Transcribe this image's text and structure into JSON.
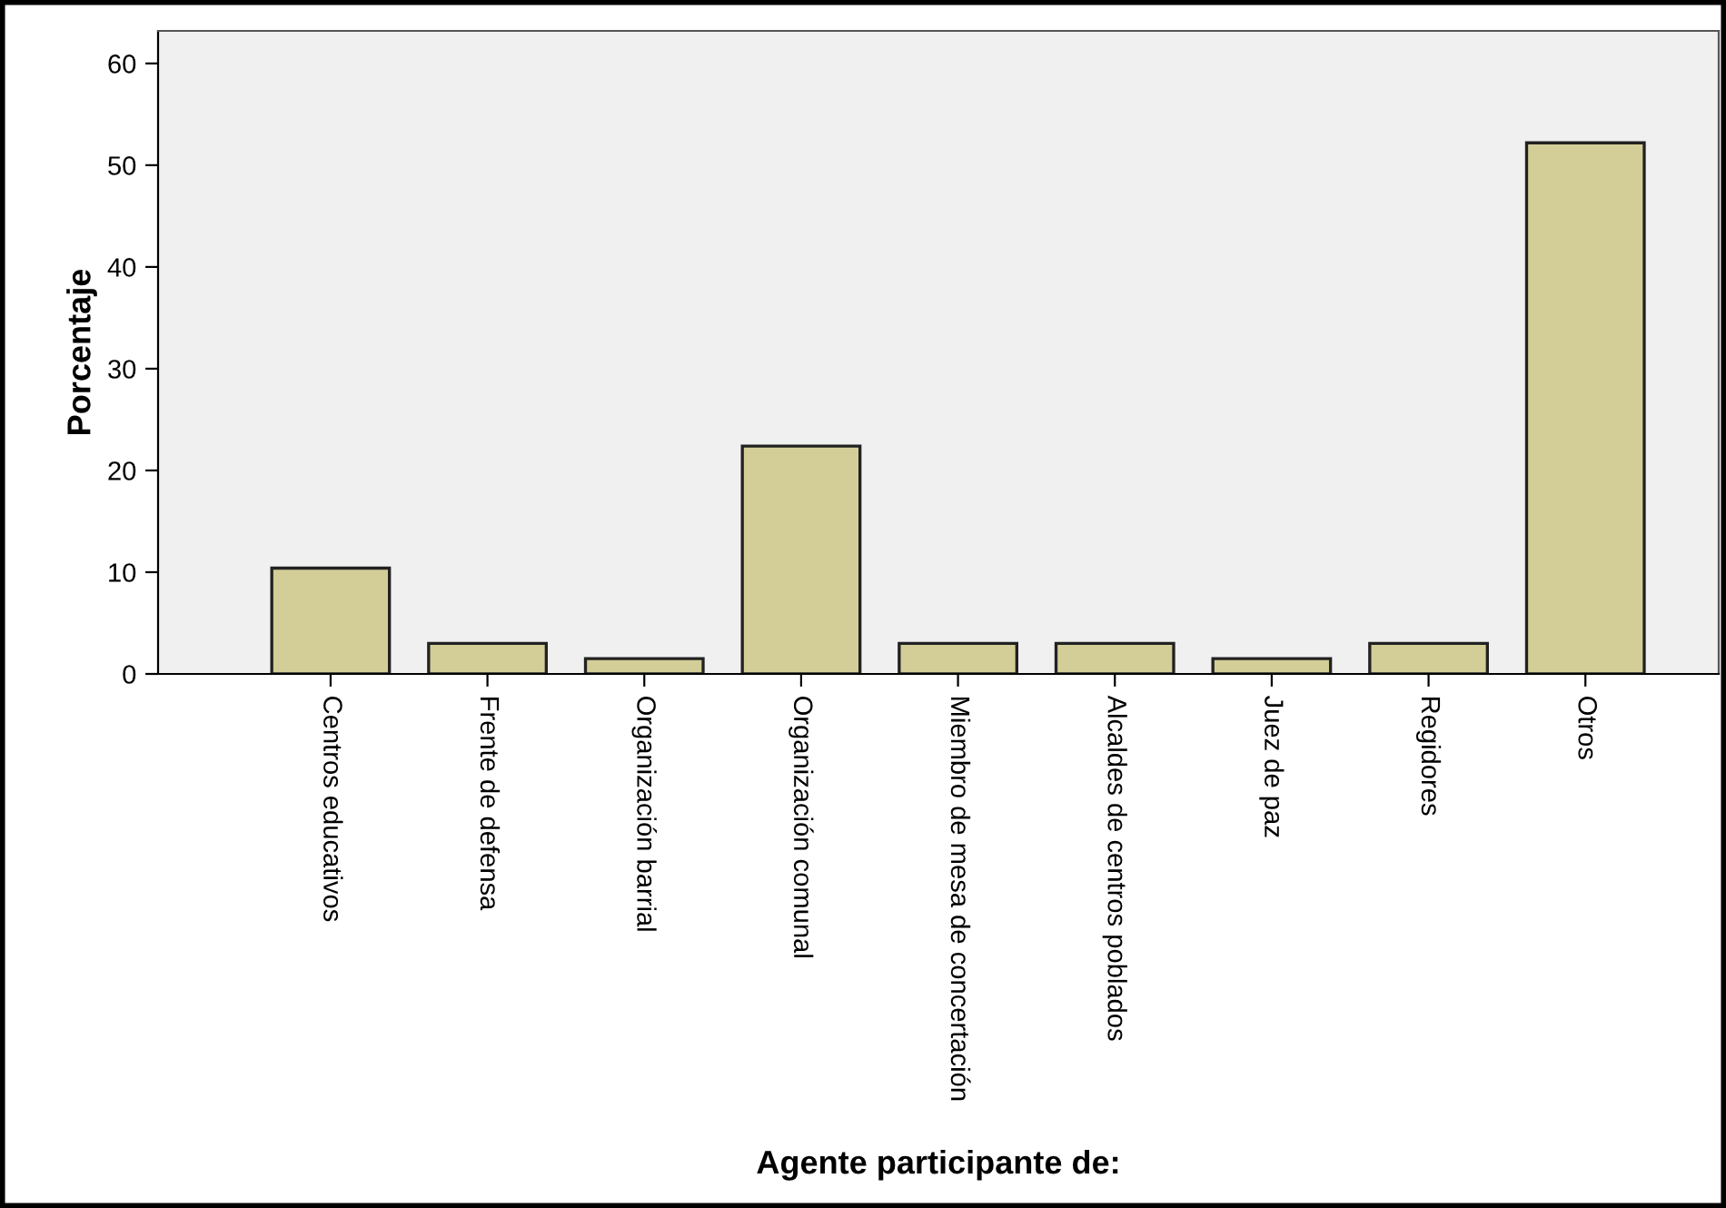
{
  "chart_data": {
    "type": "bar",
    "xlabel": "Agente participante de:",
    "ylabel": "Porcentaje",
    "categories": [
      "Centros educativos",
      "Frente de defensa",
      "Organización barrial",
      "Organización comunal",
      "Miembro de mesa de concertación",
      "Alcaldes de centros poblados",
      "Juez de paz",
      "Regidores",
      "Otros"
    ],
    "values": [
      10.4,
      3.0,
      1.5,
      22.4,
      3.0,
      3.0,
      1.5,
      3.0,
      52.2
    ],
    "color": "#d3ce97",
    "ylim": [
      0,
      63.2
    ],
    "yticks": [
      0,
      10,
      20,
      30,
      40,
      50,
      60
    ],
    "grid": false
  }
}
